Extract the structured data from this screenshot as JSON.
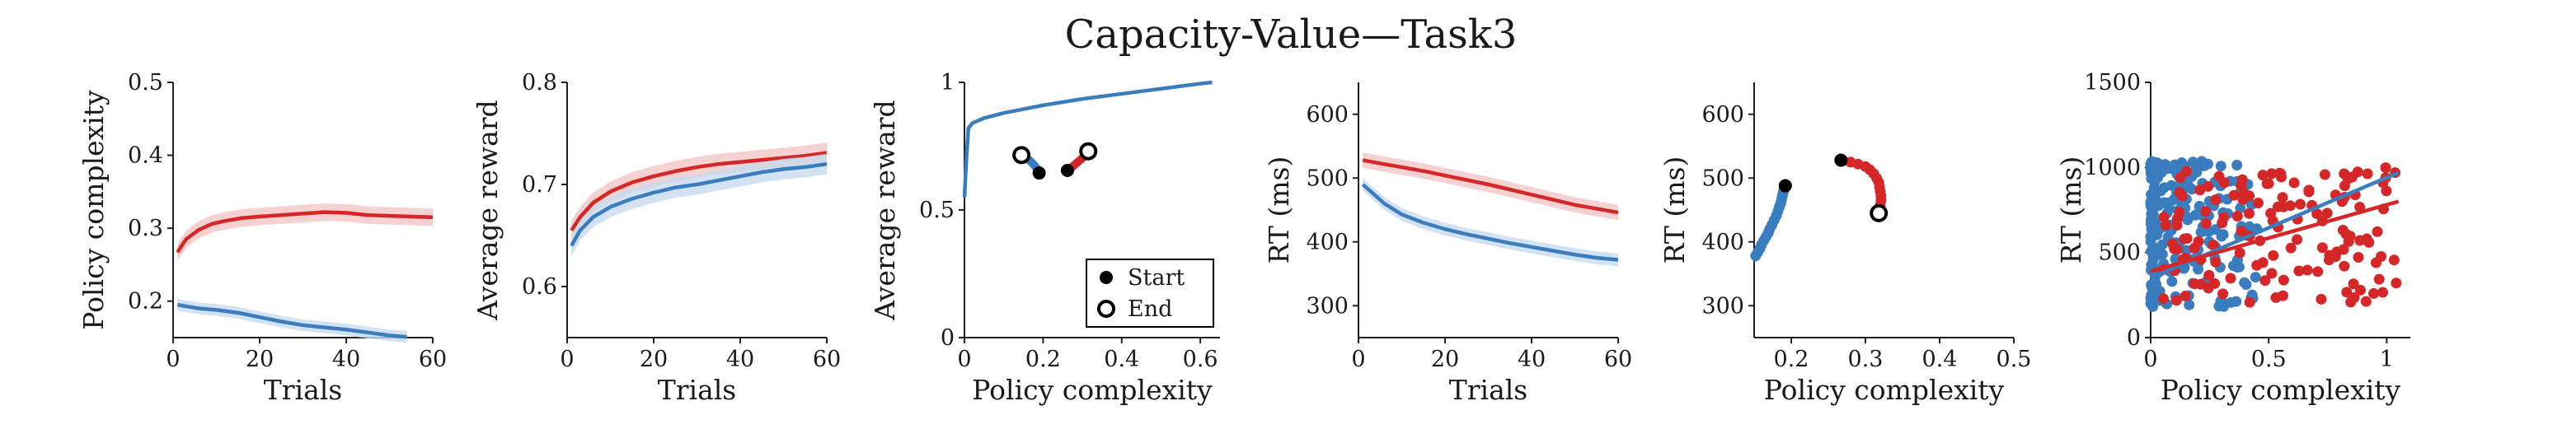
{
  "title": "Capacity-Value—Task3",
  "colors": {
    "red": "#d62728",
    "blue": "#3a7dbf",
    "red_band": "#f4c6c6",
    "blue_band": "#c8dbef",
    "axis": "#222222"
  },
  "chart_data": [
    {
      "type": "line",
      "xlabel": "Trials",
      "ylabel": "Policy complexity",
      "xlim": [
        0,
        60
      ],
      "ylim": [
        0.15,
        0.5
      ],
      "xticks": [
        0,
        20,
        40,
        60
      ],
      "yticks": [
        0.2,
        0.3,
        0.4,
        0.5
      ],
      "xticklabels": [
        "0",
        "20",
        "40",
        "60"
      ],
      "yticklabels": [
        "0.2",
        "0.3",
        "0.4",
        "0.5"
      ],
      "series": [
        {
          "color": "red",
          "band": 0.012,
          "x": [
            1,
            3,
            6,
            9,
            12,
            16,
            20,
            25,
            30,
            35,
            40,
            45,
            50,
            55,
            60
          ],
          "y": [
            0.267,
            0.285,
            0.298,
            0.306,
            0.31,
            0.314,
            0.316,
            0.318,
            0.32,
            0.322,
            0.321,
            0.318,
            0.317,
            0.316,
            0.315
          ]
        },
        {
          "color": "blue",
          "band": 0.008,
          "x": [
            1,
            3,
            6,
            10,
            15,
            20,
            25,
            30,
            35,
            40,
            45,
            50,
            54
          ],
          "y": [
            0.195,
            0.193,
            0.19,
            0.188,
            0.184,
            0.178,
            0.172,
            0.167,
            0.164,
            0.161,
            0.157,
            0.153,
            0.151
          ]
        }
      ]
    },
    {
      "type": "line",
      "xlabel": "Trials",
      "ylabel": "Average reward",
      "xlim": [
        0,
        60
      ],
      "ylim": [
        0.55,
        0.8
      ],
      "xticks": [
        0,
        20,
        40,
        60
      ],
      "yticks": [
        0.6,
        0.7,
        0.8
      ],
      "xticklabels": [
        "0",
        "20",
        "40",
        "60"
      ],
      "yticklabels": [
        "0.6",
        "0.7",
        "0.8"
      ],
      "series": [
        {
          "color": "red",
          "band": 0.01,
          "x": [
            1,
            3,
            6,
            10,
            15,
            20,
            25,
            30,
            35,
            40,
            45,
            50,
            55,
            60
          ],
          "y": [
            0.655,
            0.668,
            0.682,
            0.693,
            0.702,
            0.708,
            0.713,
            0.717,
            0.72,
            0.722,
            0.724,
            0.726,
            0.728,
            0.731
          ]
        },
        {
          "color": "blue",
          "band": 0.01,
          "x": [
            1,
            3,
            6,
            10,
            15,
            20,
            25,
            30,
            35,
            40,
            45,
            50,
            55,
            60
          ],
          "y": [
            0.64,
            0.655,
            0.668,
            0.678,
            0.686,
            0.692,
            0.697,
            0.7,
            0.704,
            0.708,
            0.712,
            0.715,
            0.717,
            0.72
          ]
        }
      ]
    },
    {
      "type": "line",
      "xlabel": "Policy complexity",
      "ylabel": "Average reward",
      "xlim": [
        0,
        0.65
      ],
      "ylim": [
        0,
        1
      ],
      "xticks": [
        0,
        0.2,
        0.4,
        0.6
      ],
      "yticks": [
        0,
        0.5,
        1
      ],
      "xticklabels": [
        "0",
        "0.2",
        "0.4",
        "0.6"
      ],
      "yticklabels": [
        "0",
        "0.5",
        "1"
      ],
      "curve": {
        "x": [
          0.0,
          0.005,
          0.01,
          0.02,
          0.05,
          0.1,
          0.15,
          0.2,
          0.3,
          0.4,
          0.5,
          0.6,
          0.63
        ],
        "y": [
          0.55,
          0.7,
          0.82,
          0.84,
          0.86,
          0.88,
          0.895,
          0.91,
          0.935,
          0.955,
          0.975,
          0.995,
          1.0
        ]
      },
      "trajectories": [
        {
          "color": "blue",
          "x": [
            0.145,
            0.155,
            0.165,
            0.175,
            0.183,
            0.19
          ],
          "y": [
            0.715,
            0.705,
            0.695,
            0.68,
            0.665,
            0.645
          ]
        },
        {
          "color": "red",
          "x": [
            0.262,
            0.275,
            0.29,
            0.305,
            0.315
          ],
          "y": [
            0.655,
            0.67,
            0.69,
            0.71,
            0.725
          ]
        }
      ],
      "points": [
        {
          "kind": "start",
          "x": 0.19,
          "y": 0.645
        },
        {
          "kind": "end",
          "x": 0.145,
          "y": 0.715
        },
        {
          "kind": "start",
          "x": 0.262,
          "y": 0.655
        },
        {
          "kind": "end",
          "x": 0.315,
          "y": 0.73
        }
      ],
      "legend": {
        "placement": "lower-right",
        "entries": [
          "Start",
          "End"
        ]
      }
    },
    {
      "type": "line",
      "xlabel": "Trials",
      "ylabel": "RT (ms)",
      "xlim": [
        0,
        60
      ],
      "ylim": [
        250,
        650
      ],
      "xticks": [
        0,
        20,
        40,
        60
      ],
      "yticks": [
        300,
        400,
        500,
        600
      ],
      "xticklabels": [
        "0",
        "20",
        "40",
        "60"
      ],
      "yticklabels": [
        "300",
        "400",
        "500",
        "600"
      ],
      "series": [
        {
          "color": "red",
          "band": 12,
          "x": [
            1,
            5,
            10,
            15,
            20,
            25,
            30,
            35,
            40,
            45,
            50,
            55,
            60
          ],
          "y": [
            528,
            523,
            517,
            511,
            504,
            497,
            490,
            482,
            474,
            466,
            458,
            452,
            446
          ]
        },
        {
          "color": "blue",
          "band": 10,
          "x": [
            1,
            3,
            6,
            10,
            15,
            20,
            25,
            30,
            35,
            40,
            45,
            50,
            55,
            60
          ],
          "y": [
            490,
            478,
            460,
            443,
            430,
            420,
            412,
            405,
            398,
            392,
            386,
            380,
            375,
            372
          ]
        }
      ]
    },
    {
      "type": "scatter",
      "xlabel": "Policy complexity",
      "ylabel": "RT (ms)",
      "xlim": [
        0.15,
        0.5
      ],
      "ylim": [
        250,
        650
      ],
      "xticks": [
        0.2,
        0.3,
        0.4,
        0.5
      ],
      "yticks": [
        300,
        400,
        500,
        600
      ],
      "xticklabels": [
        "0.2",
        "0.3",
        "0.4",
        "0.5"
      ],
      "yticklabels": [
        "300",
        "400",
        "500",
        "600"
      ],
      "series": [
        {
          "color": "blue",
          "x": [
            0.152,
            0.155,
            0.158,
            0.16,
            0.163,
            0.166,
            0.169,
            0.171,
            0.174,
            0.177,
            0.18,
            0.182,
            0.184,
            0.186,
            0.187,
            0.188,
            0.189,
            0.19,
            0.191,
            0.192
          ],
          "y": [
            378,
            384,
            390,
            396,
            402,
            408,
            414,
            420,
            427,
            434,
            441,
            448,
            455,
            461,
            467,
            472,
            477,
            481,
            484,
            486
          ]
        },
        {
          "color": "red",
          "x": [
            0.27,
            0.28,
            0.29,
            0.3,
            0.306,
            0.311,
            0.315,
            0.318,
            0.319,
            0.32,
            0.321,
            0.321,
            0.32,
            0.318
          ],
          "y": [
            527,
            525,
            522,
            518,
            513,
            507,
            500,
            493,
            486,
            479,
            472,
            465,
            458,
            452
          ]
        }
      ],
      "points": [
        {
          "kind": "start",
          "x": 0.192,
          "y": 488
        },
        {
          "kind": "start",
          "x": 0.267,
          "y": 528
        },
        {
          "kind": "end",
          "x": 0.318,
          "y": 445
        }
      ]
    },
    {
      "type": "scatter",
      "xlabel": "Policy complexity",
      "ylabel": "RT (ms)",
      "xlim": [
        0,
        1.1
      ],
      "ylim": [
        0,
        1500
      ],
      "xticks": [
        0,
        0.5,
        1
      ],
      "yticks": [
        0,
        500,
        1000,
        1500
      ],
      "xticklabels": [
        "0",
        "0.5",
        "1"
      ],
      "yticklabels": [
        "0",
        "500",
        "1000",
        "1500"
      ],
      "series": [
        {
          "color": "blue",
          "count": 220,
          "x_range": [
            0.0,
            0.45
          ],
          "y_range": [
            180,
            1040
          ]
        },
        {
          "color": "red",
          "count": 140,
          "x_range": [
            0.05,
            1.05
          ],
          "y_range": [
            200,
            1000
          ]
        }
      ],
      "fits": [
        {
          "color": "blue",
          "x": [
            0,
            1.05
          ],
          "y": [
            350,
            970
          ]
        },
        {
          "color": "red",
          "x": [
            0,
            1.05
          ],
          "y": [
            390,
            800
          ]
        }
      ]
    }
  ]
}
